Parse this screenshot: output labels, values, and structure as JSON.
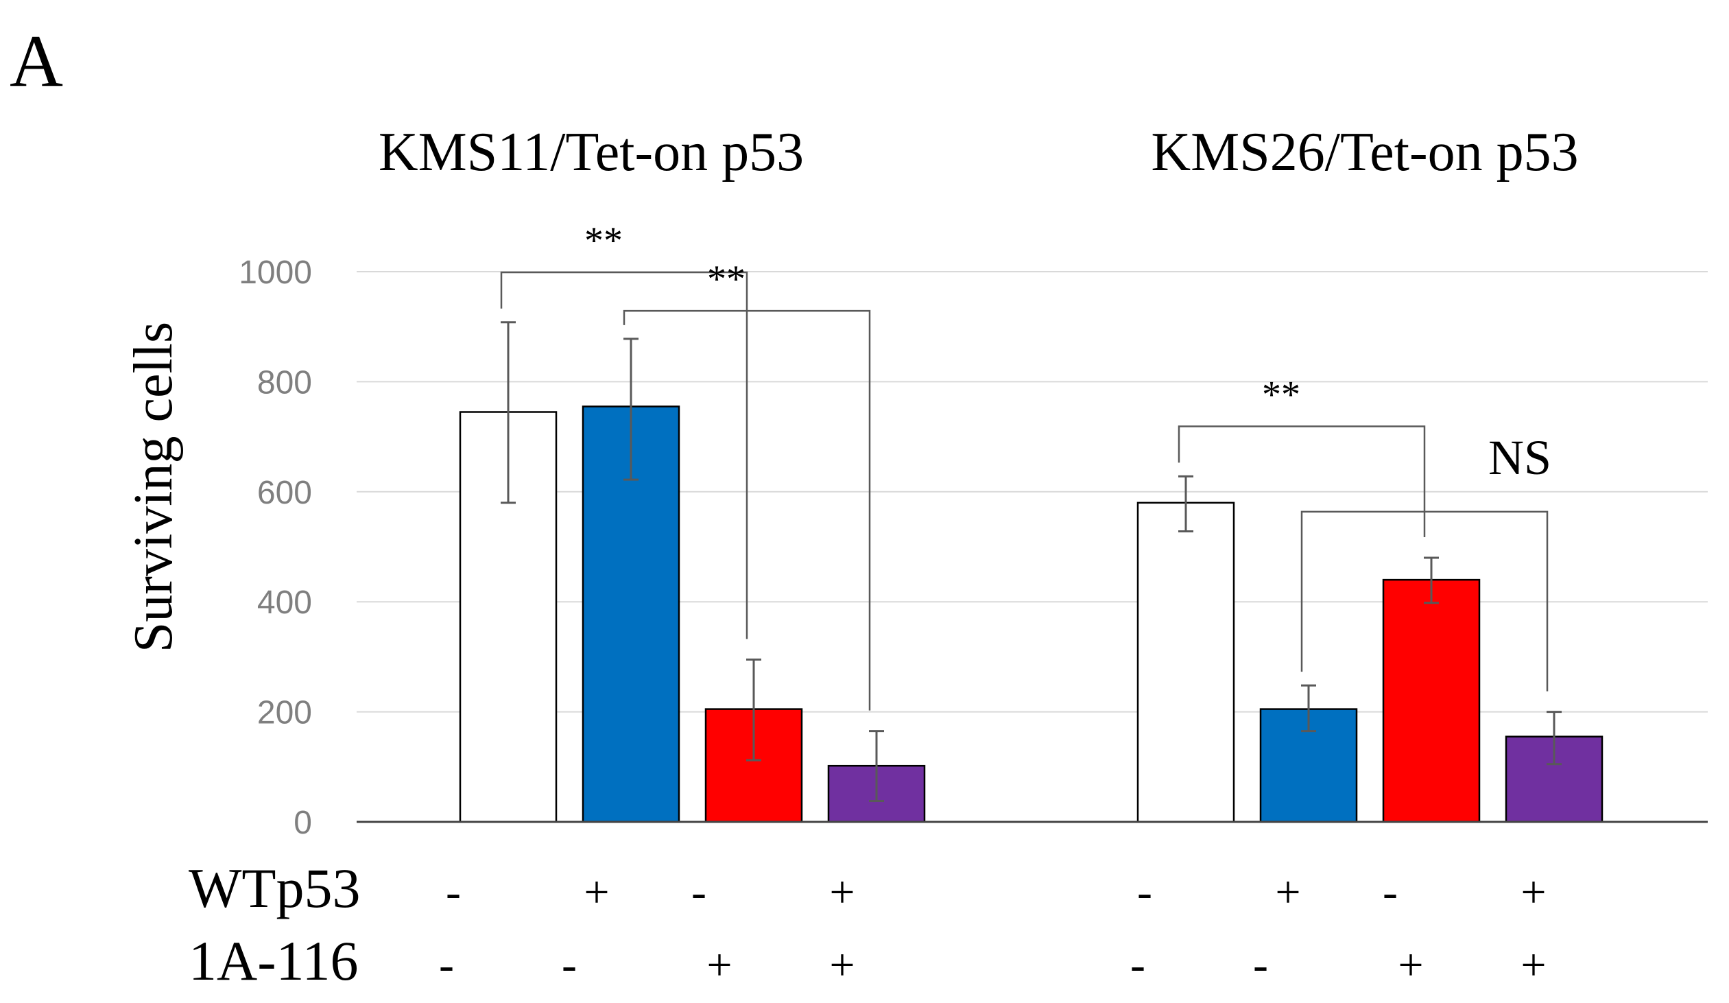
{
  "panel_label": "A",
  "chart_data": {
    "type": "bar",
    "ylabel": "Surviving cells",
    "ylim": [
      0,
      1000
    ],
    "yticks": [
      0,
      200,
      400,
      600,
      800,
      1000
    ],
    "grid": true,
    "groups": [
      {
        "title": "KMS11/Tet-on p53",
        "bars": [
          {
            "wt": "-",
            "drug": "-",
            "value": 745,
            "error_low": 580,
            "error_high": 908,
            "color": "#ffffff"
          },
          {
            "wt": "+",
            "drug": "-",
            "value": 755,
            "error_low": 622,
            "error_high": 878,
            "color": "#0070c0"
          },
          {
            "wt": "-",
            "drug": "+",
            "value": 205,
            "error_low": 112,
            "error_high": 295,
            "color": "#ff0000"
          },
          {
            "wt": "+",
            "drug": "+",
            "value": 102,
            "error_low": 38,
            "error_high": 165,
            "color": "#7030a0"
          }
        ],
        "significance": [
          {
            "from": 0,
            "to": 2,
            "label": "**",
            "level": 1000
          },
          {
            "from": 1,
            "to": 3,
            "label": "**",
            "level": 930
          }
        ]
      },
      {
        "title": "KMS26/Tet-on p53",
        "bars": [
          {
            "wt": "-",
            "drug": "-",
            "value": 580,
            "error_low": 528,
            "error_high": 628,
            "color": "#ffffff"
          },
          {
            "wt": "+",
            "drug": "-",
            "value": 205,
            "error_low": 165,
            "error_high": 248,
            "color": "#0070c0"
          },
          {
            "wt": "-",
            "drug": "+",
            "value": 440,
            "error_low": 398,
            "error_high": 480,
            "color": "#ff0000"
          },
          {
            "wt": "+",
            "drug": "+",
            "value": 155,
            "error_low": 105,
            "error_high": 200,
            "color": "#7030a0"
          }
        ],
        "significance": [
          {
            "from": 0,
            "to": 2,
            "label": "**",
            "level": 720
          },
          {
            "from": 1,
            "to": 3,
            "label": "NS",
            "level": 565
          }
        ]
      }
    ],
    "row_labels": [
      "WTp53",
      "1A-116"
    ]
  }
}
